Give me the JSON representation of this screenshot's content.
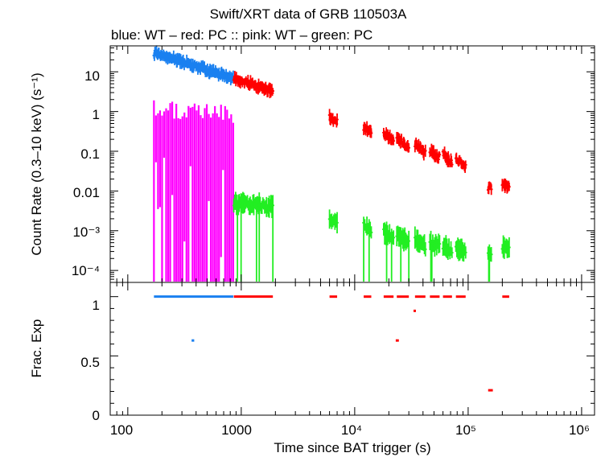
{
  "chart_data": {
    "type": "scatter",
    "title": "Swift/XRT data of GRB 110503A",
    "subtitle": "blue: WT  – red: PC  :: pink: WT  – green: PC",
    "xlabel": "Time since BAT trigger (s)",
    "x_scale": "log",
    "xlim": [
      70,
      1300000
    ],
    "x_ticks": [
      "100",
      "1000",
      "10⁴",
      "10⁵",
      "10⁶"
    ],
    "colors": {
      "blue": "#1a80f0",
      "red": "#ff0000",
      "pink": "#ff00ff",
      "green": "#22ee22"
    },
    "panels": [
      {
        "name": "count-rate",
        "ylabel": "Count Rate (0.3–10 keV) (s⁻¹)",
        "y_scale": "log",
        "ylim": [
          5e-05,
          45
        ],
        "y_ticks": [
          "10",
          "1",
          "0.1",
          "0.01",
          "10⁻³",
          "10⁻⁴"
        ],
        "series": [
          {
            "color": "blue",
            "segments": [
              {
                "t0": 170,
                "t1": 850,
                "y0": 30,
                "y1": 7
              }
            ]
          },
          {
            "color": "red",
            "segments": [
              {
                "t0": 860,
                "t1": 1900,
                "y0": 7,
                "y1": 3.2
              },
              {
                "t0": 6000,
                "t1": 7000,
                "y0": 0.7,
                "y1": 0.55
              },
              {
                "t0": 12000,
                "t1": 14000,
                "y0": 0.4,
                "y1": 0.3
              },
              {
                "t0": 18000,
                "t1": 22000,
                "y0": 0.3,
                "y1": 0.2
              },
              {
                "t0": 23500,
                "t1": 30000,
                "y0": 0.22,
                "y1": 0.12
              },
              {
                "t0": 34000,
                "t1": 42000,
                "y0": 0.15,
                "y1": 0.09
              },
              {
                "t0": 46000,
                "t1": 56000,
                "y0": 0.1,
                "y1": 0.07
              },
              {
                "t0": 60000,
                "t1": 72000,
                "y0": 0.09,
                "y1": 0.05
              },
              {
                "t0": 78000,
                "t1": 95000,
                "y0": 0.07,
                "y1": 0.04
              },
              {
                "t0": 150000,
                "t1": 160000,
                "y0": 0.012,
                "y1": 0.012
              },
              {
                "t0": 200000,
                "t1": 230000,
                "y0": 0.014,
                "y1": 0.014
              }
            ]
          },
          {
            "color": "pink",
            "segments": [
              {
                "t0": 170,
                "t1": 850,
                "y0": 1.2,
                "y1": 0.9
              }
            ]
          },
          {
            "color": "green",
            "segments": [
              {
                "t0": 860,
                "t1": 1900,
                "y0": 0.005,
                "y1": 0.004
              },
              {
                "t0": 6000,
                "t1": 7000,
                "y0": 0.002,
                "y1": 0.0015
              },
              {
                "t0": 12000,
                "t1": 14000,
                "y0": 0.0015,
                "y1": 0.001
              },
              {
                "t0": 18000,
                "t1": 22000,
                "y0": 0.001,
                "y1": 0.0007
              },
              {
                "t0": 23500,
                "t1": 30000,
                "y0": 0.0008,
                "y1": 0.0005
              },
              {
                "t0": 34000,
                "t1": 42000,
                "y0": 0.0006,
                "y1": 0.0004
              },
              {
                "t0": 46000,
                "t1": 56000,
                "y0": 0.0005,
                "y1": 0.0004
              },
              {
                "t0": 60000,
                "t1": 72000,
                "y0": 0.0004,
                "y1": 0.0003
              },
              {
                "t0": 78000,
                "t1": 95000,
                "y0": 0.0004,
                "y1": 0.0003
              },
              {
                "t0": 150000,
                "t1": 160000,
                "y0": 0.00026,
                "y1": 0.00026
              },
              {
                "t0": 200000,
                "t1": 230000,
                "y0": 0.00038,
                "y1": 0.00038
              }
            ]
          }
        ]
      },
      {
        "name": "frac-exp",
        "ylabel": "Frac. Exp",
        "y_scale": "linear",
        "ylim": [
          0,
          1.12
        ],
        "y_ticks": [
          "0",
          "0.5",
          "1"
        ],
        "series": [
          {
            "color": "blue",
            "segments": [
              {
                "t0": 170,
                "t1": 850,
                "y": 1.0
              },
              {
                "t0": 365,
                "t1": 385,
                "y": 0.63
              }
            ]
          },
          {
            "color": "red",
            "segments": [
              {
                "t0": 860,
                "t1": 1900,
                "y": 1.0
              },
              {
                "t0": 6000,
                "t1": 7000,
                "y": 1.0
              },
              {
                "t0": 12000,
                "t1": 14000,
                "y": 1.0
              },
              {
                "t0": 18000,
                "t1": 22000,
                "y": 1.0
              },
              {
                "t0": 23500,
                "t1": 30000,
                "y": 1.0
              },
              {
                "t0": 34000,
                "t1": 42000,
                "y": 1.0
              },
              {
                "t0": 46000,
                "t1": 56000,
                "y": 1.0
              },
              {
                "t0": 60000,
                "t1": 72000,
                "y": 1.0
              },
              {
                "t0": 78000,
                "t1": 95000,
                "y": 1.0
              },
              {
                "t0": 200000,
                "t1": 230000,
                "y": 1.0
              },
              {
                "t0": 23000,
                "t1": 24500,
                "y": 0.63
              },
              {
                "t0": 33000,
                "t1": 34500,
                "y": 0.88
              },
              {
                "t0": 150000,
                "t1": 165000,
                "y": 0.21
              }
            ]
          }
        ]
      }
    ]
  }
}
